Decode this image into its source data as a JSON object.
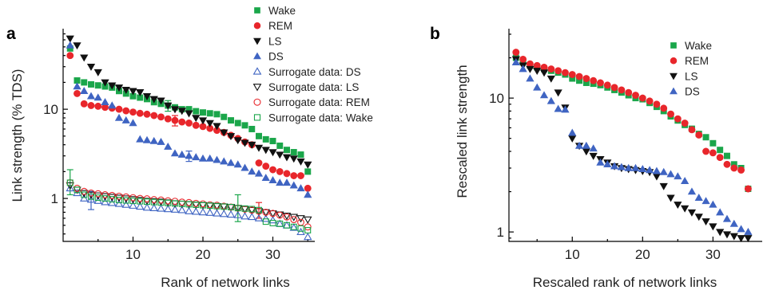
{
  "colors": {
    "wake": "#1aa64a",
    "rem": "#e8262b",
    "ls": "#111111",
    "ds": "#3f64c2"
  },
  "chart_data": [
    {
      "panel_label": "a",
      "type": "scatter",
      "xlabel": "Rank of network links",
      "ylabel": "Link strength (% TDS)",
      "yscale": "log",
      "xlim": [
        0,
        36
      ],
      "ylim": [
        0.33,
        80
      ],
      "x_ticks": [
        10,
        20,
        30
      ],
      "y_ticks": [
        1,
        10
      ],
      "legend_position": "top-right",
      "series": [
        {
          "name": "Wake",
          "marker": "square",
          "filled": true,
          "color": "#1aa64a",
          "x": [
            1,
            2,
            3,
            4,
            5,
            6,
            7,
            8,
            9,
            10,
            11,
            12,
            13,
            14,
            15,
            16,
            17,
            18,
            19,
            20,
            21,
            22,
            23,
            24,
            25,
            26,
            27,
            28,
            29,
            30,
            31,
            32,
            33,
            34,
            35
          ],
          "y": [
            48,
            21,
            20,
            19,
            18.5,
            18,
            17.5,
            16,
            15,
            14,
            13.5,
            13,
            12,
            11.5,
            11,
            10.5,
            10,
            10,
            9.5,
            9.2,
            9,
            8.8,
            8.2,
            7.5,
            7,
            6.6,
            6,
            5,
            4.6,
            4.4,
            3.9,
            3.5,
            3.3,
            3.1,
            2.0
          ]
        },
        {
          "name": "REM",
          "marker": "circle",
          "filled": true,
          "color": "#e8262b",
          "x": [
            1,
            2,
            3,
            4,
            5,
            6,
            7,
            8,
            9,
            10,
            11,
            12,
            13,
            14,
            15,
            16,
            17,
            18,
            19,
            20,
            21,
            22,
            23,
            24,
            25,
            26,
            27,
            28,
            29,
            30,
            31,
            32,
            33,
            34,
            35
          ],
          "y": [
            40,
            15,
            11.5,
            11,
            10.8,
            10.5,
            10.3,
            10,
            9.6,
            9.3,
            9,
            8.8,
            8.5,
            8.2,
            7.8,
            7.5,
            7.2,
            7,
            6.6,
            6.4,
            6.1,
            5.8,
            5.5,
            5.1,
            4.7,
            4.3,
            4.0,
            2.5,
            2.3,
            2.1,
            2.0,
            1.9,
            1.8,
            1.8,
            1.3
          ]
        },
        {
          "name": "LS",
          "marker": "triangle-down",
          "filled": true,
          "color": "#111111",
          "x": [
            1,
            2,
            3,
            4,
            5,
            6,
            7,
            8,
            9,
            10,
            11,
            12,
            13,
            14,
            15,
            16,
            17,
            18,
            19,
            20,
            21,
            22,
            23,
            24,
            25,
            26,
            27,
            28,
            29,
            30,
            31,
            32,
            33,
            34,
            35
          ],
          "y": [
            62,
            52,
            38,
            30,
            26,
            20,
            18.5,
            17.5,
            16.5,
            16,
            15.5,
            14,
            13,
            12.5,
            11,
            10,
            9.6,
            9,
            8,
            7.5,
            7,
            6.5,
            5.5,
            5,
            4.5,
            4.2,
            4,
            3.7,
            3.5,
            3.3,
            3.1,
            2.9,
            2.8,
            2.6,
            2.4
          ]
        },
        {
          "name": "DS",
          "marker": "triangle-up",
          "filled": true,
          "color": "#3f64c2",
          "x": [
            1,
            2,
            3,
            4,
            5,
            6,
            7,
            8,
            9,
            10,
            11,
            12,
            13,
            14,
            15,
            16,
            17,
            18,
            19,
            20,
            21,
            22,
            23,
            24,
            25,
            26,
            27,
            28,
            29,
            30,
            31,
            32,
            33,
            34,
            35
          ],
          "y": [
            52,
            18,
            16,
            14,
            13.5,
            12,
            11,
            8,
            7.5,
            7,
            4.6,
            4.5,
            4.4,
            4.3,
            3.8,
            3.2,
            3.1,
            3,
            2.9,
            2.8,
            2.8,
            2.7,
            2.6,
            2.5,
            2.4,
            2.2,
            2.0,
            1.9,
            1.7,
            1.6,
            1.5,
            1.5,
            1.4,
            1.3,
            1.1
          ]
        },
        {
          "name": "Surrogate data: DS",
          "marker": "triangle-up",
          "filled": false,
          "color": "#3f64c2",
          "x": [
            1,
            2,
            3,
            4,
            5,
            6,
            7,
            8,
            9,
            10,
            11,
            12,
            13,
            14,
            15,
            16,
            17,
            18,
            19,
            20,
            21,
            22,
            23,
            24,
            25,
            26,
            27,
            28,
            29,
            30,
            31,
            32,
            33,
            34,
            35
          ],
          "y": [
            1.3,
            1.15,
            1.0,
            0.97,
            0.94,
            0.91,
            0.89,
            0.87,
            0.85,
            0.83,
            0.81,
            0.79,
            0.78,
            0.77,
            0.76,
            0.75,
            0.74,
            0.72,
            0.71,
            0.7,
            0.69,
            0.68,
            0.67,
            0.66,
            0.65,
            0.63,
            0.62,
            0.6,
            0.59,
            0.57,
            0.52,
            0.5,
            0.47,
            0.42,
            0.37
          ]
        },
        {
          "name": "Surrogate data: LS",
          "marker": "triangle-down",
          "filled": false,
          "color": "#111111",
          "x": [
            1,
            2,
            3,
            4,
            5,
            6,
            7,
            8,
            9,
            10,
            11,
            12,
            13,
            14,
            15,
            16,
            17,
            18,
            19,
            20,
            21,
            22,
            23,
            24,
            25,
            26,
            27,
            28,
            29,
            30,
            31,
            32,
            33,
            34,
            35
          ],
          "y": [
            1.4,
            1.25,
            1.15,
            1.1,
            1.08,
            1.06,
            1.04,
            1.02,
            1.0,
            0.98,
            0.96,
            0.94,
            0.93,
            0.92,
            0.9,
            0.88,
            0.87,
            0.86,
            0.85,
            0.84,
            0.83,
            0.82,
            0.81,
            0.8,
            0.78,
            0.76,
            0.74,
            0.72,
            0.7,
            0.68,
            0.66,
            0.64,
            0.62,
            0.6,
            0.58
          ]
        },
        {
          "name": "Surrogate data: REM",
          "marker": "circle",
          "filled": false,
          "color": "#e8262b",
          "x": [
            1,
            2,
            3,
            4,
            5,
            6,
            7,
            8,
            9,
            10,
            11,
            12,
            13,
            14,
            15,
            16,
            17,
            18,
            19,
            20,
            21,
            22,
            23,
            24,
            25,
            26,
            27,
            28,
            29,
            30,
            31,
            32,
            33,
            34,
            35
          ],
          "y": [
            1.5,
            1.3,
            1.2,
            1.15,
            1.13,
            1.1,
            1.08,
            1.06,
            1.04,
            1.02,
            1.0,
            0.99,
            0.97,
            0.96,
            0.94,
            0.93,
            0.91,
            0.9,
            0.88,
            0.87,
            0.85,
            0.84,
            0.82,
            0.8,
            0.78,
            0.76,
            0.74,
            0.72,
            0.7,
            0.68,
            0.65,
            0.62,
            0.58,
            0.54,
            0.48
          ]
        },
        {
          "name": "Surrogate data: Wake",
          "marker": "square",
          "filled": false,
          "color": "#1aa64a",
          "x": [
            1,
            2,
            3,
            4,
            5,
            6,
            7,
            8,
            9,
            10,
            11,
            12,
            13,
            14,
            15,
            16,
            17,
            18,
            19,
            20,
            21,
            22,
            23,
            24,
            25,
            26,
            27,
            28,
            29,
            30,
            31,
            32,
            33,
            34,
            35
          ],
          "y": [
            1.5,
            1.25,
            1.1,
            1.05,
            1.02,
            1.0,
            0.98,
            0.96,
            0.95,
            0.94,
            0.93,
            0.92,
            0.91,
            0.9,
            0.89,
            0.88,
            0.87,
            0.86,
            0.85,
            0.84,
            0.83,
            0.82,
            0.81,
            0.8,
            0.78,
            0.77,
            0.76,
            0.74,
            0.55,
            0.53,
            0.52,
            0.5,
            0.48,
            0.46,
            0.44
          ]
        }
      ],
      "error_bars": [
        {
          "series": "Surrogate data: Wake",
          "x": 1,
          "y": 1.5,
          "low": 1.1,
          "high": 2.1
        },
        {
          "series": "Surrogate data: DS",
          "x": 4,
          "y": 1.0,
          "low": 0.75,
          "high": 1.2
        },
        {
          "series": "Surrogate data: Wake",
          "x": 25,
          "y": 0.78,
          "low": 0.55,
          "high": 1.1
        },
        {
          "series": "Surrogate data: REM",
          "x": 28,
          "y": 0.72,
          "low": 0.6,
          "high": 0.9
        },
        {
          "series": "REM",
          "x": 16,
          "y": 7.5,
          "low": 6.5,
          "high": 8.5
        },
        {
          "series": "DS",
          "x": 18,
          "y": 3.0,
          "low": 2.6,
          "high": 3.4
        },
        {
          "series": "Wake",
          "x": 15,
          "y": 11,
          "low": 9.5,
          "high": 12.5
        }
      ]
    },
    {
      "panel_label": "b",
      "type": "scatter",
      "xlabel": "Rescaled rank of network links",
      "ylabel": "Rescaled link strength",
      "yscale": "log",
      "xlim": [
        1,
        37
      ],
      "ylim": [
        0.85,
        33
      ],
      "x_ticks": [
        10,
        20,
        30
      ],
      "y_ticks": [
        1,
        10
      ],
      "legend_position": "top-right",
      "series": [
        {
          "name": "Wake",
          "marker": "square",
          "filled": true,
          "color": "#1aa64a",
          "x": [
            2,
            3,
            4,
            5,
            6,
            7,
            8,
            9,
            10,
            11,
            12,
            13,
            14,
            15,
            16,
            17,
            18,
            19,
            20,
            21,
            22,
            23,
            24,
            25,
            26,
            27,
            28,
            29,
            30,
            31,
            32,
            33,
            34,
            35
          ],
          "y": [
            20,
            18.5,
            17.5,
            17,
            16.5,
            16,
            15.5,
            15,
            14,
            13.5,
            13,
            12.8,
            12.5,
            12,
            11.5,
            11,
            10.5,
            10,
            9.8,
            9.2,
            8.6,
            8,
            7.3,
            6.8,
            6.3,
            5.9,
            5.4,
            5.1,
            4.6,
            4.1,
            3.7,
            3.2,
            3.0,
            2.1
          ]
        },
        {
          "name": "REM",
          "marker": "circle",
          "filled": true,
          "color": "#e8262b",
          "x": [
            2,
            3,
            4,
            5,
            6,
            7,
            8,
            9,
            10,
            11,
            12,
            13,
            14,
            15,
            16,
            17,
            18,
            19,
            20,
            21,
            22,
            23,
            24,
            25,
            26,
            27,
            28,
            29,
            30,
            31,
            32,
            33,
            34,
            35
          ],
          "y": [
            22,
            19.5,
            18,
            17.5,
            17,
            16.5,
            16,
            15.5,
            15,
            14.5,
            14,
            13.5,
            13,
            12.5,
            12,
            11.5,
            11,
            10.5,
            10,
            9.5,
            9,
            8.4,
            7.6,
            7,
            6.5,
            5.8,
            5.3,
            4.0,
            3.9,
            3.6,
            3.2,
            3.0,
            2.9,
            2.1
          ]
        },
        {
          "name": "LS",
          "marker": "triangle-down",
          "filled": true,
          "color": "#111111",
          "x": [
            2,
            3,
            4,
            5,
            6,
            7,
            8,
            9,
            10,
            11,
            12,
            13,
            14,
            15,
            16,
            17,
            18,
            19,
            20,
            21,
            22,
            23,
            24,
            25,
            26,
            27,
            28,
            29,
            30,
            31,
            32,
            33,
            34,
            35
          ],
          "y": [
            19.5,
            17.5,
            16.5,
            16,
            15.5,
            14,
            11,
            8.5,
            5,
            4.4,
            4.0,
            3.7,
            3.5,
            3.3,
            3.1,
            3.0,
            2.95,
            2.9,
            2.85,
            2.8,
            2.6,
            2.2,
            1.8,
            1.6,
            1.5,
            1.4,
            1.3,
            1.2,
            1.1,
            1.0,
            0.96,
            0.93,
            0.9,
            0.9
          ]
        },
        {
          "name": "DS",
          "marker": "triangle-up",
          "filled": true,
          "color": "#3f64c2",
          "x": [
            2,
            3,
            4,
            5,
            6,
            7,
            8,
            9,
            10,
            11,
            12,
            13,
            14,
            15,
            16,
            17,
            18,
            19,
            20,
            21,
            22,
            23,
            24,
            25,
            26,
            27,
            28,
            29,
            30,
            31,
            32,
            33,
            34,
            35
          ],
          "y": [
            18.5,
            16.5,
            14,
            12,
            10.5,
            9.5,
            8.3,
            8.2,
            5.5,
            4.4,
            4.4,
            4.2,
            3.3,
            3.2,
            3.1,
            3.05,
            3.0,
            3.0,
            2.95,
            2.9,
            2.85,
            2.8,
            2.7,
            2.6,
            2.4,
            2.0,
            1.8,
            1.7,
            1.6,
            1.4,
            1.25,
            1.15,
            1.05,
            1.0
          ]
        }
      ]
    }
  ]
}
